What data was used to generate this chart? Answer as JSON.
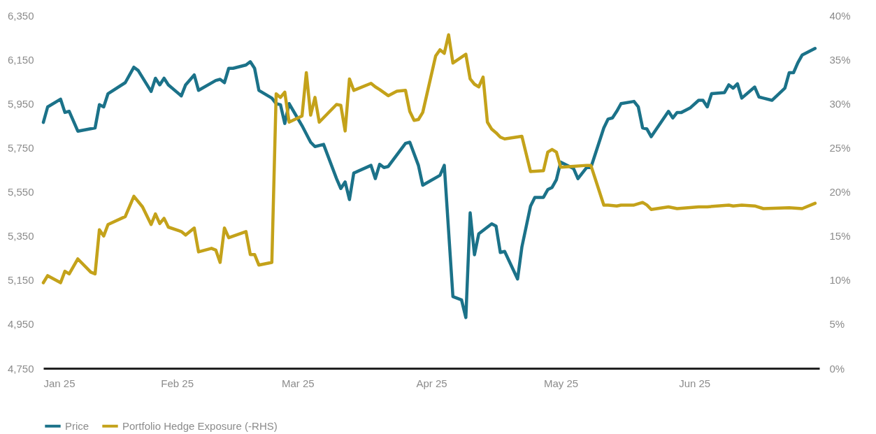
{
  "chart_data": {
    "type": "line",
    "legend": "bottom left",
    "grid": false,
    "line_style": "solid",
    "marker": "none",
    "xlim": [
      "2025-01-01",
      "2025-06-30"
    ],
    "xticks": [
      {
        "value": "2025-01-01",
        "label": "Jan 25"
      },
      {
        "value": "2025-02-01",
        "label": "Feb 25"
      },
      {
        "value": "2025-03-01",
        "label": "Mar 25"
      },
      {
        "value": "2025-04-01",
        "label": "Apr 25"
      },
      {
        "value": "2025-05-01",
        "label": "May 25"
      },
      {
        "value": "2025-06-01",
        "label": "Jun 25"
      }
    ],
    "ylim": [
      4750,
      6350
    ],
    "yticks": [
      {
        "value": 4750,
        "label": "4,750"
      },
      {
        "value": 4950,
        "label": "4,950"
      },
      {
        "value": 5150,
        "label": "5,150"
      },
      {
        "value": 5350,
        "label": "5,350"
      },
      {
        "value": 5550,
        "label": "5,550"
      },
      {
        "value": 5750,
        "label": "5,750"
      },
      {
        "value": 5950,
        "label": "5,950"
      },
      {
        "value": 6150,
        "label": "6,150"
      },
      {
        "value": 6350,
        "label": "6,350"
      }
    ],
    "y2lim": [
      0,
      40
    ],
    "y2ticks": [
      {
        "value": 0,
        "label": "0%"
      },
      {
        "value": 5,
        "label": "5%"
      },
      {
        "value": 10,
        "label": "10%"
      },
      {
        "value": 15,
        "label": "15%"
      },
      {
        "value": 20,
        "label": "20%"
      },
      {
        "value": 25,
        "label": "25%"
      },
      {
        "value": 30,
        "label": "30%"
      },
      {
        "value": 35,
        "label": "35%"
      },
      {
        "value": 40,
        "label": "40%"
      }
    ],
    "series": [
      {
        "name": "Price",
        "color": "#1b7289",
        "x": [
          "2025-01-01",
          "2025-01-02",
          "2025-01-05",
          "2025-01-06",
          "2025-01-07",
          "2025-01-09",
          "2025-01-13",
          "2025-01-14",
          "2025-01-15",
          "2025-01-16",
          "2025-01-20",
          "2025-01-22",
          "2025-01-23",
          "2025-01-26",
          "2025-01-27",
          "2025-01-28",
          "2025-01-29",
          "2025-01-30",
          "2025-02-02",
          "2025-02-03",
          "2025-02-05",
          "2025-02-06",
          "2025-02-10",
          "2025-02-11",
          "2025-02-12",
          "2025-02-13",
          "2025-02-14",
          "2025-02-17",
          "2025-02-18",
          "2025-02-19",
          "2025-02-20",
          "2025-02-23",
          "2025-02-24",
          "2025-02-25",
          "2025-02-26",
          "2025-02-27",
          "2025-03-02",
          "2025-03-04",
          "2025-03-05",
          "2025-03-07",
          "2025-03-10",
          "2025-03-11",
          "2025-03-12",
          "2025-03-13",
          "2025-03-14",
          "2025-03-18",
          "2025-03-19",
          "2025-03-20",
          "2025-03-21",
          "2025-03-22",
          "2025-03-26",
          "2025-03-27",
          "2025-03-29",
          "2025-03-30",
          "2025-04-03",
          "2025-04-04",
          "2025-04-06",
          "2025-04-08",
          "2025-04-09",
          "2025-04-10",
          "2025-04-11",
          "2025-04-12",
          "2025-04-15",
          "2025-04-16",
          "2025-04-17",
          "2025-04-18",
          "2025-04-21",
          "2025-04-22",
          "2025-04-24",
          "2025-04-25",
          "2025-04-27",
          "2025-04-28",
          "2025-04-29",
          "2025-04-30",
          "2025-05-01",
          "2025-05-04",
          "2025-05-05",
          "2025-05-07",
          "2025-05-08",
          "2025-05-11",
          "2025-05-12",
          "2025-05-13",
          "2025-05-14",
          "2025-05-15",
          "2025-05-18",
          "2025-05-19",
          "2025-05-20",
          "2025-05-21",
          "2025-05-22",
          "2025-05-26",
          "2025-05-27",
          "2025-05-28",
          "2025-05-29",
          "2025-05-31",
          "2025-06-02",
          "2025-06-03",
          "2025-06-04",
          "2025-06-05",
          "2025-06-08",
          "2025-06-09",
          "2025-06-10",
          "2025-06-11",
          "2025-06-12",
          "2025-06-15",
          "2025-06-16",
          "2025-06-17",
          "2025-06-19",
          "2025-06-22",
          "2025-06-23",
          "2025-06-24",
          "2025-06-25",
          "2025-06-26",
          "2025-06-29"
        ],
        "values": [
          5865,
          5935,
          5970,
          5910,
          5915,
          5825,
          5840,
          5945,
          5935,
          5995,
          6045,
          6115,
          6100,
          6005,
          6065,
          6035,
          6065,
          6035,
          5985,
          6035,
          6080,
          6010,
          6055,
          6060,
          6045,
          6110,
          6110,
          6125,
          6140,
          6110,
          6010,
          5975,
          5950,
          5945,
          5860,
          5950,
          5850,
          5775,
          5755,
          5765,
          5610,
          5565,
          5595,
          5515,
          5635,
          5670,
          5610,
          5675,
          5660,
          5665,
          5770,
          5775,
          5670,
          5580,
          5625,
          5670,
          5075,
          5060,
          4980,
          5455,
          5265,
          5360,
          5405,
          5395,
          5275,
          5280,
          5155,
          5300,
          5485,
          5525,
          5525,
          5560,
          5570,
          5605,
          5685,
          5655,
          5610,
          5660,
          5660,
          5840,
          5880,
          5885,
          5915,
          5950,
          5960,
          5935,
          5840,
          5835,
          5800,
          5915,
          5885,
          5910,
          5910,
          5930,
          5965,
          5965,
          5935,
          5995,
          6000,
          6035,
          6020,
          6040,
          5975,
          6025,
          5980,
          5975,
          5965,
          6020,
          6090,
          6090,
          6135,
          6170,
          6200
        ]
      },
      {
        "name": "Portfolio Hedge Exposure (-RHS)",
        "color": "#c4a21a",
        "axis": "y2",
        "x": [
          "2025-01-01",
          "2025-01-02",
          "2025-01-05",
          "2025-01-06",
          "2025-01-07",
          "2025-01-09",
          "2025-01-12",
          "2025-01-13",
          "2025-01-14",
          "2025-01-15",
          "2025-01-16",
          "2025-01-20",
          "2025-01-22",
          "2025-01-24",
          "2025-01-26",
          "2025-01-27",
          "2025-01-28",
          "2025-01-29",
          "2025-01-30",
          "2025-02-02",
          "2025-02-03",
          "2025-02-05",
          "2025-02-06",
          "2025-02-09",
          "2025-02-10",
          "2025-02-11",
          "2025-02-12",
          "2025-02-13",
          "2025-02-17",
          "2025-02-18",
          "2025-02-19",
          "2025-02-20",
          "2025-02-23",
          "2025-02-24",
          "2025-02-25",
          "2025-02-26",
          "2025-02-27",
          "2025-03-02",
          "2025-03-03",
          "2025-03-04",
          "2025-03-05",
          "2025-03-06",
          "2025-03-10",
          "2025-03-11",
          "2025-03-12",
          "2025-03-13",
          "2025-03-14",
          "2025-03-18",
          "2025-03-19",
          "2025-03-20",
          "2025-03-22",
          "2025-03-24",
          "2025-03-26",
          "2025-03-27",
          "2025-03-28",
          "2025-03-29",
          "2025-03-30",
          "2025-04-02",
          "2025-04-03",
          "2025-04-04",
          "2025-04-05",
          "2025-04-06",
          "2025-04-09",
          "2025-04-10",
          "2025-04-11",
          "2025-04-12",
          "2025-04-13",
          "2025-04-14",
          "2025-04-15",
          "2025-04-16",
          "2025-04-17",
          "2025-04-18",
          "2025-04-22",
          "2025-04-23",
          "2025-04-24",
          "2025-04-27",
          "2025-04-28",
          "2025-04-29",
          "2025-04-30",
          "2025-05-01",
          "2025-05-04",
          "2025-05-07",
          "2025-05-08",
          "2025-05-11",
          "2025-05-12",
          "2025-05-14",
          "2025-05-15",
          "2025-05-18",
          "2025-05-20",
          "2025-05-21",
          "2025-05-22",
          "2025-05-26",
          "2025-05-28",
          "2025-06-02",
          "2025-06-04",
          "2025-06-09",
          "2025-06-10",
          "2025-06-12",
          "2025-06-15",
          "2025-06-17",
          "2025-06-23",
          "2025-06-26",
          "2025-06-29"
        ],
        "values": [
          9.7,
          10.5,
          9.7,
          11.0,
          10.7,
          12.4,
          10.9,
          10.7,
          15.7,
          15.0,
          16.3,
          17.2,
          19.5,
          18.3,
          16.3,
          17.5,
          16.4,
          17.0,
          16.0,
          15.5,
          15.1,
          15.9,
          13.2,
          13.6,
          13.4,
          12.0,
          15.9,
          14.8,
          15.5,
          12.9,
          12.9,
          11.7,
          12.0,
          31.1,
          30.7,
          31.3,
          27.9,
          28.6,
          33.5,
          28.7,
          30.7,
          27.9,
          29.9,
          29.8,
          26.9,
          32.8,
          31.5,
          32.3,
          31.9,
          31.6,
          30.9,
          31.4,
          31.5,
          29.1,
          28.1,
          28.2,
          29.0,
          35.4,
          36.1,
          35.7,
          37.8,
          34.6,
          35.6,
          32.8,
          32.2,
          31.9,
          33.0,
          27.9,
          27.1,
          26.7,
          26.2,
          26.0,
          26.3,
          24.3,
          22.3,
          22.4,
          24.5,
          24.8,
          24.5,
          22.8,
          22.9,
          23.0,
          23.0,
          18.5,
          18.5,
          18.4,
          18.5,
          18.5,
          18.8,
          18.5,
          18.0,
          18.3,
          18.1,
          18.3,
          18.3,
          18.5,
          18.4,
          18.5,
          18.4,
          18.1,
          18.2,
          18.1,
          18.7
        ]
      }
    ]
  }
}
